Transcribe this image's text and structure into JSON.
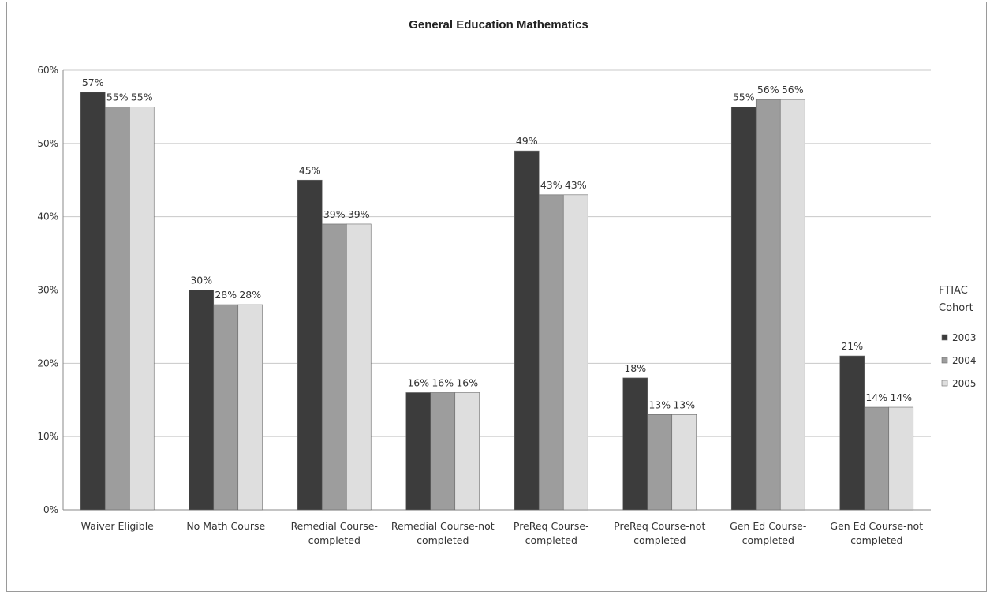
{
  "chart_data": {
    "type": "bar",
    "title": "General Education Mathematics",
    "xlabel": "",
    "ylabel": "",
    "ylim": [
      0,
      60
    ],
    "yticks": [
      "0%",
      "10%",
      "20%",
      "30%",
      "40%",
      "50%",
      "60%"
    ],
    "grid": true,
    "legend_position": "right",
    "legend_title": "FTIAC Cohort",
    "categories": [
      [
        "Waiver Eligible"
      ],
      [
        "No Math Course"
      ],
      [
        "Remedial Course-",
        "completed"
      ],
      [
        "Remedial Course-not",
        "completed"
      ],
      [
        "PreReq Course-",
        "completed"
      ],
      [
        "PreReq Course-not",
        "completed"
      ],
      [
        "Gen Ed Course-",
        "completed"
      ],
      [
        "Gen Ed Course-not",
        "completed"
      ]
    ],
    "series": [
      {
        "name": "2003",
        "color": "#3c3c3c",
        "values": [
          57,
          30,
          45,
          16,
          49,
          18,
          55,
          21
        ],
        "labels": [
          "57%",
          "30%",
          "45%",
          "16%",
          "49%",
          "18%",
          "55%",
          "21%"
        ]
      },
      {
        "name": "2004",
        "color": "#9d9d9d",
        "values": [
          55,
          28,
          39,
          16,
          43,
          13,
          56,
          14
        ],
        "labels": [
          "55%",
          "28%",
          "39%",
          "16%",
          "43%",
          "13%",
          "56%",
          "14%"
        ]
      },
      {
        "name": "2005",
        "color": "#dedede",
        "values": [
          55,
          28,
          39,
          16,
          43,
          13,
          56,
          14
        ],
        "labels": [
          "55%",
          "28%",
          "39%",
          "16%",
          "43%",
          "13%",
          "56%",
          "14%"
        ]
      }
    ]
  }
}
